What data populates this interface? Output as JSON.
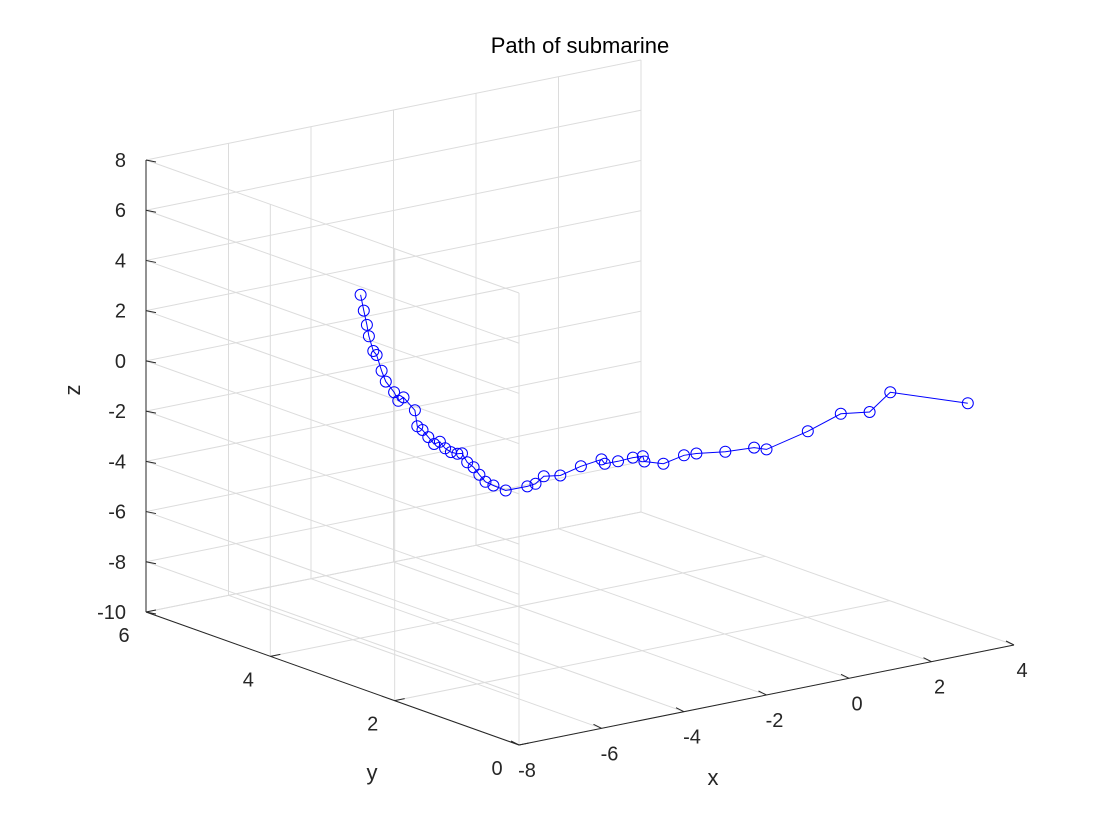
{
  "chart_data": {
    "type": "line3d",
    "title": "Path of submarine",
    "xlabel": "x",
    "ylabel": "y",
    "zlabel": "z",
    "xlim": [
      -8,
      4
    ],
    "ylim": [
      0,
      6
    ],
    "zlim": [
      -10,
      8
    ],
    "xticks": [
      "-8",
      "-6",
      "-4",
      "-2",
      "0",
      "2",
      "4"
    ],
    "yticks": [
      "0",
      "2",
      "4",
      "6"
    ],
    "zticks": [
      "-10",
      "-8",
      "-6",
      "-4",
      "-2",
      "0",
      "2",
      "4",
      "6",
      "8"
    ],
    "grid": true,
    "box": "three back panes",
    "view": "default 3-D (azimuth -37.5, elevation 30)",
    "series": [
      {
        "color": "#0000ff",
        "marker": "circle",
        "points": [
          [
            2.88,
            0.0,
            0.0
          ],
          [
            1.0,
            0.0,
            1.06
          ],
          [
            0.5,
            0.0,
            0.44
          ],
          [
            -0.2,
            0.0,
            0.6
          ],
          [
            -1.0,
            0.0,
            0.17
          ],
          [
            -2.0,
            0.0,
            -0.22
          ],
          [
            -2.3,
            0.0,
            -0.05
          ],
          [
            -3.0,
            0.0,
            0.02
          ],
          [
            -3.7,
            0.0,
            0.18
          ],
          [
            -4.0,
            0.0,
            0.21
          ],
          [
            -4.5,
            0.0,
            0.04
          ],
          [
            -4.96,
            0.0,
            0.28
          ],
          [
            -5.0,
            0.0,
            0.5
          ],
          [
            -5.24,
            0.0,
            0.53
          ],
          [
            -5.6,
            0.0,
            0.5
          ],
          [
            -5.92,
            0.0,
            0.51
          ],
          [
            -6.0,
            0.0,
            0.71
          ],
          [
            -6.5,
            0.0,
            0.6
          ],
          [
            -7.0,
            0.0,
            0.4
          ],
          [
            -7.4,
            0.0,
            0.5
          ],
          [
            -7.6,
            0.0,
            0.27
          ],
          [
            -7.8,
            0.0,
            0.23
          ],
          [
            -7.6,
            0.48,
            -0.42
          ],
          [
            -7.4,
            0.81,
            -0.58
          ],
          [
            -7.2,
            1.07,
            -0.73
          ],
          [
            -7.0,
            1.3,
            -0.72
          ],
          [
            -6.9,
            1.46,
            -0.59
          ],
          [
            -6.8,
            1.63,
            -0.58
          ],
          [
            -6.7,
            1.78,
            -0.39
          ],
          [
            -6.6,
            1.92,
            -0.56
          ],
          [
            -6.5,
            2.09,
            -0.68
          ],
          [
            -6.4,
            2.25,
            -0.7
          ],
          [
            -6.3,
            2.4,
            -0.61
          ],
          [
            -6.2,
            2.56,
            -0.87
          ],
          [
            -6.1,
            2.72,
            -0.77
          ],
          [
            -6.0,
            2.88,
            -0.66
          ],
          [
            -5.9,
            3.03,
            -0.68
          ],
          [
            -5.7,
            3.2,
            -0.26
          ],
          [
            -5.6,
            3.45,
            0.0
          ],
          [
            -5.5,
            3.6,
            -0.3
          ],
          [
            -5.3,
            3.8,
            -0.2
          ],
          [
            -5.2,
            4.0,
            0.01
          ],
          [
            -5.0,
            4.2,
            0.2
          ],
          [
            -4.7,
            4.48,
            0.48
          ],
          [
            -4.6,
            4.6,
            0.5
          ],
          [
            -4.3,
            4.87,
            0.75
          ],
          [
            -4.0,
            5.1,
            0.9
          ],
          [
            -3.7,
            5.35,
            1.15
          ],
          [
            -3.4,
            5.6,
            1.46
          ]
        ]
      }
    ]
  }
}
